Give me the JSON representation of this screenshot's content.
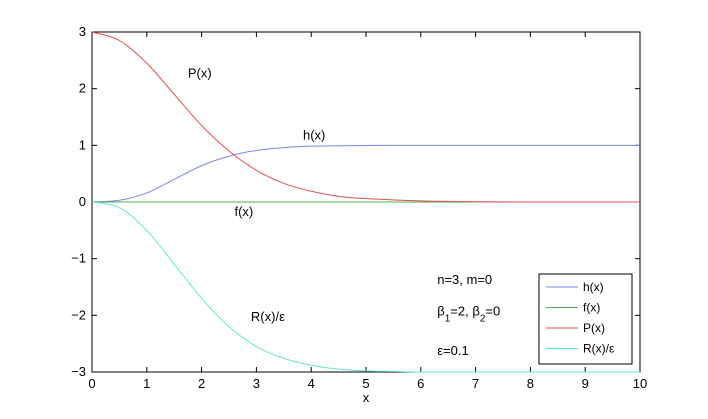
{
  "chart_data": {
    "type": "line",
    "xlabel": "x",
    "ylabel": "",
    "xlim": [
      0,
      10
    ],
    "ylim": [
      -3,
      3
    ],
    "xticks": [
      0,
      1,
      2,
      3,
      4,
      5,
      6,
      7,
      8,
      9,
      10
    ],
    "yticks": [
      -3,
      -2,
      -1,
      0,
      1,
      2,
      3
    ],
    "grid": false,
    "legend_position": "bottom-right",
    "series": [
      {
        "name": "h(x)",
        "color": "#7b86ee",
        "x": [
          0,
          0.5,
          1,
          1.5,
          2,
          2.5,
          3,
          3.5,
          4,
          5,
          6,
          7,
          8,
          9,
          10
        ],
        "y": [
          0,
          0.03,
          0.16,
          0.4,
          0.64,
          0.81,
          0.91,
          0.96,
          0.985,
          0.998,
          1.0,
          1.0,
          1.0,
          1.0,
          1.0
        ]
      },
      {
        "name": "f(x)",
        "color": "#4fb04f",
        "x": [
          0,
          1,
          2,
          3,
          4,
          5,
          6,
          7,
          8,
          9,
          10
        ],
        "y": [
          0,
          0,
          0,
          0,
          0,
          0,
          0,
          0,
          0,
          0,
          0
        ]
      },
      {
        "name": "P(x)",
        "color": "#e05050",
        "x": [
          0,
          0.5,
          1,
          1.5,
          2,
          2.5,
          3,
          3.5,
          4,
          4.5,
          5,
          6,
          7,
          8,
          9,
          10
        ],
        "y": [
          3.0,
          2.85,
          2.45,
          1.9,
          1.35,
          0.9,
          0.56,
          0.33,
          0.19,
          0.1,
          0.06,
          0.02,
          0.005,
          0.0,
          0.0,
          0.0
        ]
      },
      {
        "name": "R(x)/ε",
        "color": "#5fe8d0",
        "x": [
          0,
          0.5,
          1,
          1.5,
          2,
          2.5,
          3,
          3.5,
          4,
          4.5,
          5,
          5.5,
          6,
          7,
          8,
          9,
          10
        ],
        "y": [
          0,
          -0.1,
          -0.5,
          -1.1,
          -1.7,
          -2.2,
          -2.55,
          -2.76,
          -2.88,
          -2.95,
          -2.98,
          -2.99,
          -3.0,
          -3.0,
          -3.0,
          -3.0,
          -3.0
        ]
      }
    ],
    "annotations": [
      {
        "text": "P(x)",
        "x": 1.75,
        "y": 2.2
      },
      {
        "text": "h(x)",
        "x": 3.85,
        "y": 1.1
      },
      {
        "text": "f(x)",
        "x": 2.6,
        "y": -0.25
      },
      {
        "text": "R(x)/ε",
        "x": 2.9,
        "y": -2.1
      },
      {
        "text": "n=3, m=0",
        "x": 6.3,
        "y": -1.45
      },
      {
        "text": "β1=2, β2=0",
        "x": 6.3,
        "y": -2.0
      },
      {
        "text": "ε=0.1",
        "x": 6.3,
        "y": -2.7
      }
    ]
  }
}
